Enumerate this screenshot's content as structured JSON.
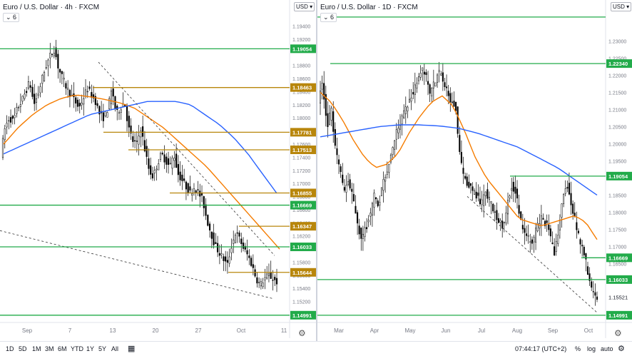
{
  "left": {
    "title": "Euro / U.S. Dollar · 4h · FXCM",
    "legend_toggle": "⌄ 6",
    "currency": "USD ▾",
    "gear_icon": "gear-icon"
  },
  "right": {
    "title": "Euro / U.S. Dollar · 1D · FXCM",
    "legend_toggle": "⌄ 6",
    "currency": "USD ▾",
    "gear_icon": "gear-icon"
  },
  "toolbar": {
    "ranges": [
      "1D",
      "5D",
      "1M",
      "3M",
      "6M",
      "YTD",
      "1Y",
      "5Y",
      "All"
    ],
    "clock": "07:44:17 (UTC+2)",
    "percent": "%",
    "log": "log",
    "auto": "auto"
  },
  "chart_data": [
    {
      "type": "candlestick",
      "title": "Euro / U.S. Dollar · 4h · FXCM",
      "ylim": [
        1.1488,
        1.1958
      ],
      "y_ticks": [
        "1.19400",
        "1.19200",
        "1.18800",
        "1.18600",
        "1.18400",
        "1.18200",
        "1.18000",
        "1.17800",
        "1.17600",
        "1.17400",
        "1.17200",
        "1.17000",
        "1.16800",
        "1.16600",
        "1.16400",
        "1.16200",
        "1.16000",
        "1.15800",
        "1.15600",
        "1.15400",
        "1.15200"
      ],
      "x_ticks": [
        "Sep",
        "7",
        "13",
        "20",
        "27",
        "Oct",
        "11"
      ],
      "levels": [
        {
          "value": 1.19054,
          "label": "1.19054",
          "color": "#22ab4a"
        },
        {
          "value": 1.18463,
          "label": "1.18463",
          "color": "#b8860b"
        },
        {
          "value": 1.17781,
          "label": "1.17781",
          "color": "#b8860b"
        },
        {
          "value": 1.17513,
          "label": "1.17513",
          "color": "#b8860b"
        },
        {
          "value": 1.16855,
          "label": "1.16855",
          "color": "#b8860b"
        },
        {
          "value": 1.16669,
          "label": "1.16669",
          "color": "#22ab4a"
        },
        {
          "value": 1.16347,
          "label": "1.16347",
          "color": "#b8860b"
        },
        {
          "value": 1.16033,
          "label": "1.16033",
          "color": "#22ab4a"
        },
        {
          "value": 1.15644,
          "label": "1.15644",
          "color": "#b8860b"
        },
        {
          "value": 1.14991,
          "label": "1.14991",
          "color": "#22ab4a"
        }
      ],
      "price_path": [
        1.1745,
        1.1785,
        1.18,
        1.1795,
        1.1815,
        1.1825,
        1.184,
        1.1855,
        1.182,
        1.1835,
        1.186,
        1.188,
        1.1895,
        1.1905,
        1.1875,
        1.186,
        1.1845,
        1.1835,
        1.1825,
        1.1815,
        1.183,
        1.1845,
        1.1835,
        1.1825,
        1.1805,
        1.18,
        1.1815,
        1.1845,
        1.1805,
        1.1815,
        1.1825,
        1.1785,
        1.1765,
        1.176,
        1.1785,
        1.175,
        1.172,
        1.171,
        1.173,
        1.1745,
        1.1735,
        1.1725,
        1.1745,
        1.1715,
        1.1705,
        1.1695,
        1.1685,
        1.1695,
        1.1685,
        1.1675,
        1.1645,
        1.1625,
        1.1605,
        1.1595,
        1.1585,
        1.1575,
        1.1605,
        1.1625,
        1.1615,
        1.16,
        1.159,
        1.1575,
        1.1555,
        1.1545,
        1.1555,
        1.156,
        1.1555,
        1.155
      ],
      "ma_slow": [
        1.1745,
        1.1755,
        1.1765,
        1.1775,
        1.1785,
        1.1795,
        1.1805,
        1.181,
        1.1815,
        1.182,
        1.1825,
        1.1825,
        1.1825,
        1.182,
        1.1805,
        1.179,
        1.177,
        1.1745,
        1.1715,
        1.1685
      ],
      "ma_fast": [
        1.176,
        1.1785,
        1.1805,
        1.182,
        1.183,
        1.1835,
        1.1832,
        1.1828,
        1.1823,
        1.1815,
        1.18,
        1.1785,
        1.1765,
        1.1745,
        1.1725,
        1.17,
        1.1675,
        1.165,
        1.1625,
        1.16
      ],
      "trendlines": [
        {
          "from": [
            0.0,
            1.1628
          ],
          "to": [
            0.96,
            1.5524
          ]
        }
      ]
    },
    {
      "type": "candlestick",
      "title": "Euro / U.S. Dollar · 1D · FXCM",
      "ylim": [
        1.1478,
        1.2378
      ],
      "y_ticks": [
        "1.23000",
        "1.22500",
        "1.22000",
        "1.21500",
        "1.21000",
        "1.20500",
        "1.20000",
        "1.19500",
        "1.18500",
        "1.18000",
        "1.17500",
        "1.17000",
        "1.16500",
        "1.15521"
      ],
      "x_ticks": [
        "Mar",
        "Apr",
        "May",
        "Jun",
        "Jul",
        "Aug",
        "Sep",
        "Oct"
      ],
      "levels": [
        {
          "value": 1.237,
          "label": "",
          "color": "#22ab4a"
        },
        {
          "value": 1.2234,
          "label": "1.22340",
          "color": "#22ab4a"
        },
        {
          "value": 1.19054,
          "label": "1.19054",
          "color": "#22ab4a"
        },
        {
          "value": 1.16669,
          "label": "1.16669",
          "color": "#22ab4a"
        },
        {
          "value": 1.16033,
          "label": "1.16033",
          "color": "#22ab4a"
        },
        {
          "value": 1.14991,
          "label": "1.14991",
          "color": "#22ab4a"
        }
      ],
      "current_price": "1.15521",
      "price_path": [
        1.213,
        1.2175,
        1.205,
        1.21,
        1.198,
        1.192,
        1.186,
        1.189,
        1.184,
        1.177,
        1.172,
        1.175,
        1.179,
        1.185,
        1.182,
        1.188,
        1.192,
        1.197,
        1.203,
        1.206,
        1.209,
        1.212,
        1.215,
        1.218,
        1.222,
        1.22,
        1.214,
        1.218,
        1.221,
        1.219,
        1.216,
        1.212,
        1.211,
        1.196,
        1.19,
        1.188,
        1.186,
        1.185,
        1.182,
        1.186,
        1.183,
        1.18,
        1.178,
        1.176,
        1.182,
        1.188,
        1.186,
        1.178,
        1.174,
        1.172,
        1.171,
        1.176,
        1.178,
        1.177,
        1.173,
        1.168,
        1.175,
        1.184,
        1.188,
        1.182,
        1.177,
        1.171,
        1.168,
        1.161,
        1.156,
        1.155
      ],
      "ma_fast": [
        1.215,
        1.212,
        1.207,
        1.201,
        1.196,
        1.193,
        1.194,
        1.197,
        1.203,
        1.208,
        1.212,
        1.214,
        1.211,
        1.204,
        1.196,
        1.19,
        1.186,
        1.182,
        1.178,
        1.177,
        1.176,
        1.177,
        1.178,
        1.179,
        1.177,
        1.172
      ],
      "ma_slow": [
        1.202,
        1.203,
        1.204,
        1.205,
        1.2055,
        1.2055,
        1.2052,
        1.2045,
        1.203,
        1.201,
        1.199,
        1.196,
        1.193,
        1.189,
        1.185
      ],
      "trendlines": [
        {
          "from": [
            0.5,
            1.1846
          ],
          "to": [
            0.97,
            1.1507
          ]
        }
      ]
    }
  ]
}
